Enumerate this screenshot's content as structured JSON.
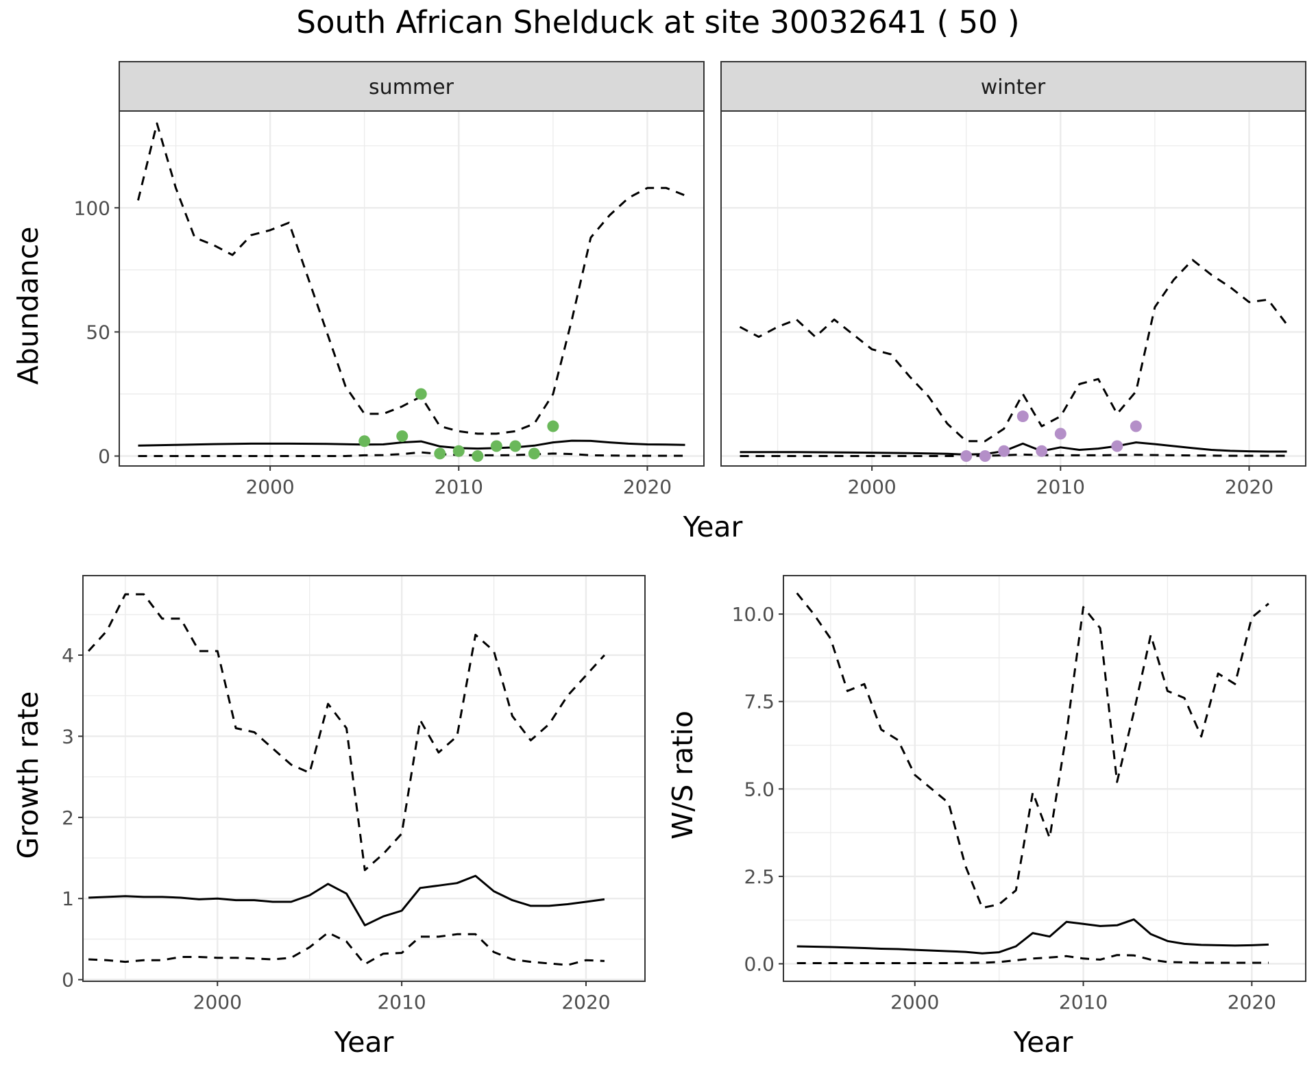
{
  "title": "South African Shelduck at site 30032641 ( 50 )",
  "colors": {
    "summer_points": "#6ab85a",
    "winter_points": "#b48fc8",
    "line": "#000000",
    "strip_fill": "#d9d9d9",
    "grid": "#ebebeb"
  },
  "chart_data": [
    {
      "type": "line",
      "panel": "summer",
      "strip_label": "summer",
      "xlabel": "Year",
      "ylabel": "Abundance",
      "xlim": [
        1992,
        2023
      ],
      "ylim": [
        -4,
        139
      ],
      "x_ticks": [
        2000,
        2010,
        2020
      ],
      "y_ticks": [
        0,
        50,
        100
      ],
      "grid": true,
      "series": [
        {
          "style": "solid",
          "x": [
            1993,
            1995,
            1997,
            1999,
            2001,
            2003,
            2005,
            2006,
            2007,
            2008,
            2009,
            2010,
            2011,
            2012,
            2013,
            2014,
            2015,
            2016,
            2017,
            2018,
            2019,
            2020,
            2021,
            2022
          ],
          "values": [
            4.2,
            4.5,
            4.8,
            5.0,
            5.0,
            4.9,
            4.6,
            4.7,
            5.5,
            5.9,
            3.9,
            3.2,
            3.0,
            3.2,
            3.5,
            4.2,
            5.5,
            6.2,
            6.1,
            5.5,
            5.0,
            4.7,
            4.6,
            4.5
          ]
        },
        {
          "style": "dashed",
          "x": [
            1993,
            1994,
            1995,
            1996,
            1997,
            1998,
            1999,
            2000,
            2001,
            2002,
            2003,
            2004,
            2005,
            2006,
            2007,
            2008,
            2009,
            2010,
            2011,
            2012,
            2013,
            2014,
            2015,
            2016,
            2017,
            2018,
            2019,
            2020,
            2021,
            2022
          ],
          "values": [
            103,
            134,
            108,
            88,
            85,
            81,
            89,
            91,
            94,
            72,
            50,
            28,
            17,
            17,
            20,
            24,
            12,
            10,
            9,
            9,
            10,
            13,
            25,
            55,
            88,
            97,
            104,
            108,
            108,
            105
          ]
        },
        {
          "style": "dashed",
          "x": [
            1993,
            1996,
            1999,
            2002,
            2004,
            2005,
            2006,
            2007,
            2008,
            2009,
            2010,
            2011,
            2012,
            2013,
            2014,
            2015,
            2016,
            2017,
            2019,
            2022
          ],
          "values": [
            0,
            0,
            0,
            0,
            0,
            0.3,
            0.4,
            0.8,
            1.5,
            0.8,
            0.4,
            0.3,
            0.3,
            0.4,
            0.7,
            1.0,
            0.8,
            0.3,
            0.1,
            0.1
          ]
        }
      ],
      "points": {
        "x": [
          2005,
          2007,
          2008,
          2009,
          2010,
          2011,
          2012,
          2013,
          2014,
          2015
        ],
        "values": [
          6,
          8,
          25,
          1,
          2,
          0,
          4,
          4,
          1,
          12
        ]
      }
    },
    {
      "type": "line",
      "panel": "winter",
      "strip_label": "winter",
      "xlabel": "Year",
      "xlim": [
        1992,
        2023
      ],
      "ylim": [
        -4,
        139
      ],
      "x_ticks": [
        2000,
        2010,
        2020
      ],
      "grid": true,
      "series": [
        {
          "style": "solid",
          "x": [
            1993,
            1996,
            1999,
            2002,
            2004,
            2005,
            2006,
            2007,
            2008,
            2009,
            2010,
            2011,
            2012,
            2013,
            2014,
            2015,
            2016,
            2017,
            2018,
            2019,
            2020,
            2021,
            2022
          ],
          "values": [
            1.6,
            1.6,
            1.4,
            1.2,
            0.9,
            0.6,
            0.8,
            2.0,
            5.0,
            2.0,
            3.5,
            2.5,
            3.0,
            4.0,
            5.5,
            4.8,
            4.0,
            3.2,
            2.5,
            2.1,
            1.9,
            1.8,
            1.8
          ]
        },
        {
          "style": "dashed",
          "x": [
            1993,
            1994,
            1995,
            1996,
            1997,
            1998,
            1999,
            2000,
            2001,
            2002,
            2003,
            2004,
            2005,
            2006,
            2007,
            2008,
            2009,
            2010,
            2011,
            2012,
            2013,
            2014,
            2015,
            2016,
            2017,
            2018,
            2019,
            2020,
            2021,
            2022
          ],
          "values": [
            52,
            48,
            52,
            55,
            48,
            55,
            49,
            43,
            41,
            32,
            24,
            13,
            6,
            6,
            11,
            25,
            12,
            16,
            29,
            31,
            17,
            26,
            60,
            71,
            79,
            73,
            68,
            62,
            63,
            53
          ]
        },
        {
          "style": "dashed",
          "x": [
            1993,
            1996,
            1999,
            2002,
            2004,
            2005,
            2006,
            2007,
            2008,
            2009,
            2010,
            2012,
            2014,
            2016,
            2019,
            2022
          ],
          "values": [
            0,
            0,
            0,
            0,
            0,
            0,
            0.1,
            0.3,
            0.6,
            0.4,
            0.3,
            0.3,
            0.5,
            0.3,
            0.1,
            0.1
          ]
        }
      ],
      "points": {
        "x": [
          2005,
          2006,
          2007,
          2008,
          2009,
          2010,
          2013,
          2014
        ],
        "values": [
          0,
          0,
          2,
          16,
          2,
          9,
          4,
          12
        ]
      }
    },
    {
      "type": "line",
      "panel": "growth",
      "xlabel": "Year",
      "ylabel": "Growth rate",
      "xlim": [
        1992.7,
        2023.2
      ],
      "ylim": [
        -0.02,
        4.98
      ],
      "x_ticks": [
        2000,
        2010,
        2020
      ],
      "y_ticks": [
        0,
        1,
        2,
        3,
        4
      ],
      "grid": true,
      "series": [
        {
          "style": "solid",
          "x": [
            1993,
            1994,
            1995,
            1996,
            1997,
            1998,
            1999,
            2000,
            2001,
            2002,
            2003,
            2004,
            2005,
            2006,
            2007,
            2008,
            2009,
            2010,
            2011,
            2012,
            2013,
            2014,
            2015,
            2016,
            2017,
            2018,
            2019,
            2020,
            2021
          ],
          "values": [
            1.01,
            1.02,
            1.03,
            1.02,
            1.02,
            1.01,
            0.99,
            1.0,
            0.98,
            0.98,
            0.96,
            0.96,
            1.04,
            1.18,
            1.06,
            0.67,
            0.78,
            0.85,
            1.13,
            1.16,
            1.19,
            1.28,
            1.09,
            0.98,
            0.91,
            0.91,
            0.93,
            0.96,
            0.99
          ]
        },
        {
          "style": "dashed",
          "x": [
            1993,
            1994,
            1995,
            1996,
            1997,
            1998,
            1999,
            2000,
            2001,
            2002,
            2003,
            2004,
            2005,
            2006,
            2007,
            2008,
            2009,
            2010,
            2011,
            2012,
            2013,
            2014,
            2015,
            2016,
            2017,
            2018,
            2019,
            2020,
            2021
          ],
          "values": [
            4.05,
            4.3,
            4.75,
            4.75,
            4.45,
            4.45,
            4.05,
            4.05,
            3.1,
            3.05,
            2.85,
            2.65,
            2.55,
            3.4,
            3.1,
            1.35,
            1.55,
            1.8,
            3.2,
            2.8,
            3.0,
            4.25,
            4.05,
            3.25,
            2.95,
            3.15,
            3.5,
            3.75,
            4.0
          ]
        },
        {
          "style": "dashed",
          "x": [
            1993,
            1994,
            1995,
            1996,
            1997,
            1998,
            1999,
            2000,
            2001,
            2002,
            2003,
            2004,
            2005,
            2006,
            2007,
            2008,
            2009,
            2010,
            2011,
            2012,
            2013,
            2014,
            2015,
            2016,
            2017,
            2018,
            2019,
            2020,
            2021
          ],
          "values": [
            0.25,
            0.24,
            0.22,
            0.24,
            0.24,
            0.28,
            0.28,
            0.27,
            0.27,
            0.26,
            0.25,
            0.27,
            0.4,
            0.58,
            0.47,
            0.19,
            0.32,
            0.33,
            0.53,
            0.53,
            0.56,
            0.56,
            0.34,
            0.25,
            0.22,
            0.2,
            0.18,
            0.24,
            0.23
          ]
        }
      ]
    },
    {
      "type": "line",
      "panel": "ws_ratio",
      "xlabel": "Year",
      "ylabel": "W/S ratio",
      "xlim": [
        1992.2,
        2023.2
      ],
      "ylim": [
        -0.5,
        11.1
      ],
      "x_ticks": [
        2000,
        2010,
        2020
      ],
      "y_ticks": [
        0.0,
        2.5,
        5.0,
        7.5,
        10.0
      ],
      "y_tick_labels": [
        "0.0",
        "2.5",
        "5.0",
        "7.5",
        "10.0"
      ],
      "grid": true,
      "series": [
        {
          "style": "solid",
          "x": [
            1993,
            1995,
            1997,
            1998,
            1999,
            2000,
            2001,
            2002,
            2003,
            2004,
            2005,
            2006,
            2007,
            2008,
            2009,
            2010,
            2011,
            2012,
            2013,
            2014,
            2015,
            2016,
            2017,
            2018,
            2019,
            2020,
            2021
          ],
          "values": [
            0.5,
            0.48,
            0.45,
            0.43,
            0.42,
            0.4,
            0.38,
            0.36,
            0.34,
            0.3,
            0.33,
            0.5,
            0.88,
            0.78,
            1.2,
            1.14,
            1.08,
            1.1,
            1.27,
            0.85,
            0.65,
            0.57,
            0.54,
            0.53,
            0.52,
            0.53,
            0.55
          ]
        },
        {
          "style": "dashed",
          "x": [
            1993,
            1994,
            1995,
            1996,
            1997,
            1998,
            1999,
            2000,
            2001,
            2002,
            2003,
            2004,
            2005,
            2006,
            2007,
            2008,
            2009,
            2010,
            2011,
            2012,
            2013,
            2014,
            2015,
            2016,
            2017,
            2018,
            2019,
            2020,
            2021
          ],
          "values": [
            10.6,
            10.0,
            9.3,
            7.8,
            8.0,
            6.7,
            6.4,
            5.4,
            5.0,
            4.6,
            2.8,
            1.6,
            1.7,
            2.1,
            4.9,
            3.6,
            6.6,
            10.2,
            9.6,
            5.2,
            7.2,
            9.4,
            7.8,
            7.6,
            6.5,
            8.3,
            8.0,
            9.9,
            10.3
          ]
        },
        {
          "style": "dashed",
          "x": [
            1993,
            1996,
            1999,
            2002,
            2004,
            2005,
            2006,
            2007,
            2008,
            2009,
            2010,
            2011,
            2012,
            2013,
            2014,
            2015,
            2017,
            2019,
            2021
          ],
          "values": [
            0.02,
            0.02,
            0.02,
            0.02,
            0.03,
            0.05,
            0.1,
            0.15,
            0.18,
            0.22,
            0.15,
            0.12,
            0.25,
            0.24,
            0.12,
            0.05,
            0.03,
            0.03,
            0.03
          ]
        }
      ]
    }
  ]
}
